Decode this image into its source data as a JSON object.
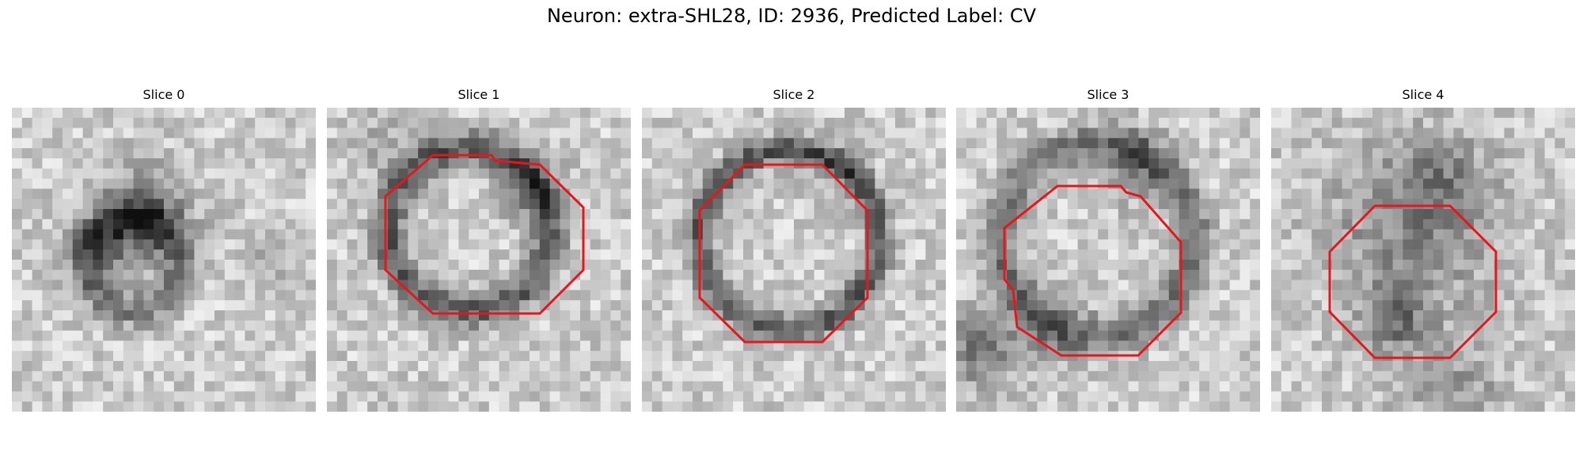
{
  "figure": {
    "title": "Neuron: extra-SHL28, ID: 2936, Predicted Label: CV",
    "contour_color": "#e8161a"
  },
  "slices": [
    {
      "title": "Slice 0",
      "has_contour": false
    },
    {
      "title": "Slice 1",
      "has_contour": true
    },
    {
      "title": "Slice 2",
      "has_contour": true
    },
    {
      "title": "Slice 3",
      "has_contour": true
    },
    {
      "title": "Slice 4",
      "has_contour": true
    }
  ]
}
